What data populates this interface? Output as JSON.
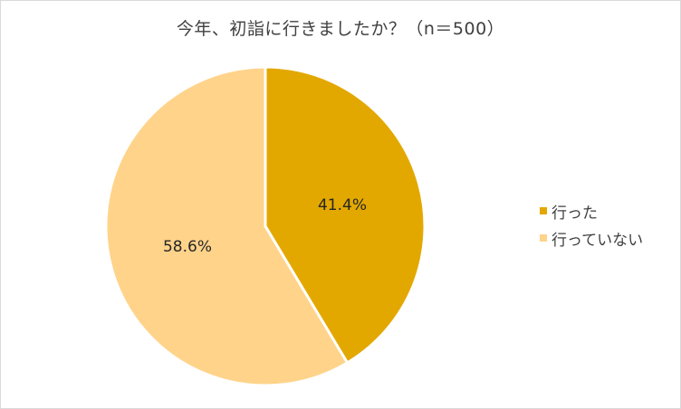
{
  "chart_data": {
    "type": "pie",
    "title": "今年、初詣に行きましたか？（n＝500）",
    "categories": [
      "行った",
      "行っていない"
    ],
    "values": [
      41.4,
      58.6
    ],
    "value_labels": [
      "41.4%",
      "58.6%"
    ],
    "colors": [
      "#E3A800",
      "#FFD38A"
    ],
    "legend_position": "right",
    "start_angle_deg": 0,
    "direction": "clockwise"
  },
  "legend": {
    "items": [
      {
        "label": "行った",
        "color": "#E3A800"
      },
      {
        "label": "行っていない",
        "color": "#FFD38A"
      }
    ]
  }
}
